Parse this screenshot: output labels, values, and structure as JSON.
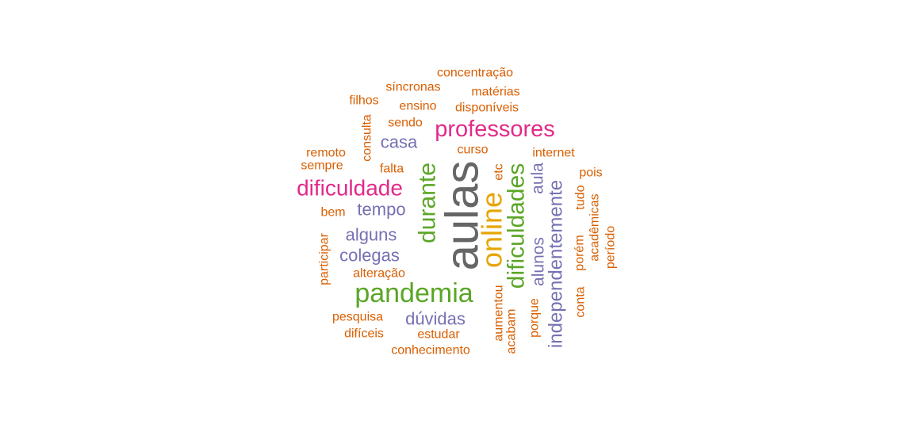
{
  "colors": {
    "gray": "#666666",
    "green": "#5aa626",
    "gold": "#e6a502",
    "magenta": "#e22a8a",
    "purple": "#7570b3",
    "orange": "#d95f02"
  },
  "words": [
    {
      "text": "aulas",
      "color": "gray",
      "rotated": true
    },
    {
      "text": "online",
      "color": "gold",
      "rotated": true
    },
    {
      "text": "dificuldades",
      "color": "green",
      "rotated": true
    },
    {
      "text": "pandemia",
      "color": "green",
      "rotated": false
    },
    {
      "text": "durante",
      "color": "green",
      "rotated": true
    },
    {
      "text": "professores",
      "color": "magenta",
      "rotated": false
    },
    {
      "text": "dificuldade",
      "color": "magenta",
      "rotated": false
    },
    {
      "text": "independentemente",
      "color": "purple",
      "rotated": true
    },
    {
      "text": "alunos",
      "color": "purple",
      "rotated": true
    },
    {
      "text": "aula",
      "color": "purple",
      "rotated": true
    },
    {
      "text": "casa",
      "color": "purple",
      "rotated": false
    },
    {
      "text": "tempo",
      "color": "purple",
      "rotated": false
    },
    {
      "text": "alguns",
      "color": "purple",
      "rotated": false
    },
    {
      "text": "colegas",
      "color": "purple",
      "rotated": false
    },
    {
      "text": "dúvidas",
      "color": "purple",
      "rotated": false
    },
    {
      "text": "concentração",
      "color": "orange",
      "rotated": false
    },
    {
      "text": "síncronas",
      "color": "orange",
      "rotated": false
    },
    {
      "text": "matérias",
      "color": "orange",
      "rotated": false
    },
    {
      "text": "filhos",
      "color": "orange",
      "rotated": false
    },
    {
      "text": "ensino",
      "color": "orange",
      "rotated": false
    },
    {
      "text": "disponíveis",
      "color": "orange",
      "rotated": false
    },
    {
      "text": "consulta",
      "color": "orange",
      "rotated": true
    },
    {
      "text": "sendo",
      "color": "orange",
      "rotated": false
    },
    {
      "text": "curso",
      "color": "orange",
      "rotated": false
    },
    {
      "text": "internet",
      "color": "orange",
      "rotated": false
    },
    {
      "text": "remoto",
      "color": "orange",
      "rotated": false
    },
    {
      "text": "sempre",
      "color": "orange",
      "rotated": false
    },
    {
      "text": "falta",
      "color": "orange",
      "rotated": false
    },
    {
      "text": "etc",
      "color": "orange",
      "rotated": true
    },
    {
      "text": "pois",
      "color": "orange",
      "rotated": false
    },
    {
      "text": "tudo",
      "color": "orange",
      "rotated": true
    },
    {
      "text": "bem",
      "color": "orange",
      "rotated": false
    },
    {
      "text": "acadêmicas",
      "color": "orange",
      "rotated": true
    },
    {
      "text": "período",
      "color": "orange",
      "rotated": true
    },
    {
      "text": "porém",
      "color": "orange",
      "rotated": true
    },
    {
      "text": "participar",
      "color": "orange",
      "rotated": true
    },
    {
      "text": "alteração",
      "color": "orange",
      "rotated": false
    },
    {
      "text": "aumentou",
      "color": "orange",
      "rotated": true
    },
    {
      "text": "conta",
      "color": "orange",
      "rotated": true
    },
    {
      "text": "pesquisa",
      "color": "orange",
      "rotated": false
    },
    {
      "text": "porque",
      "color": "orange",
      "rotated": true
    },
    {
      "text": "difíceis",
      "color": "orange",
      "rotated": false
    },
    {
      "text": "estudar",
      "color": "orange",
      "rotated": false
    },
    {
      "text": "acabam",
      "color": "orange",
      "rotated": true
    },
    {
      "text": "conhecimento",
      "color": "orange",
      "rotated": false
    }
  ]
}
